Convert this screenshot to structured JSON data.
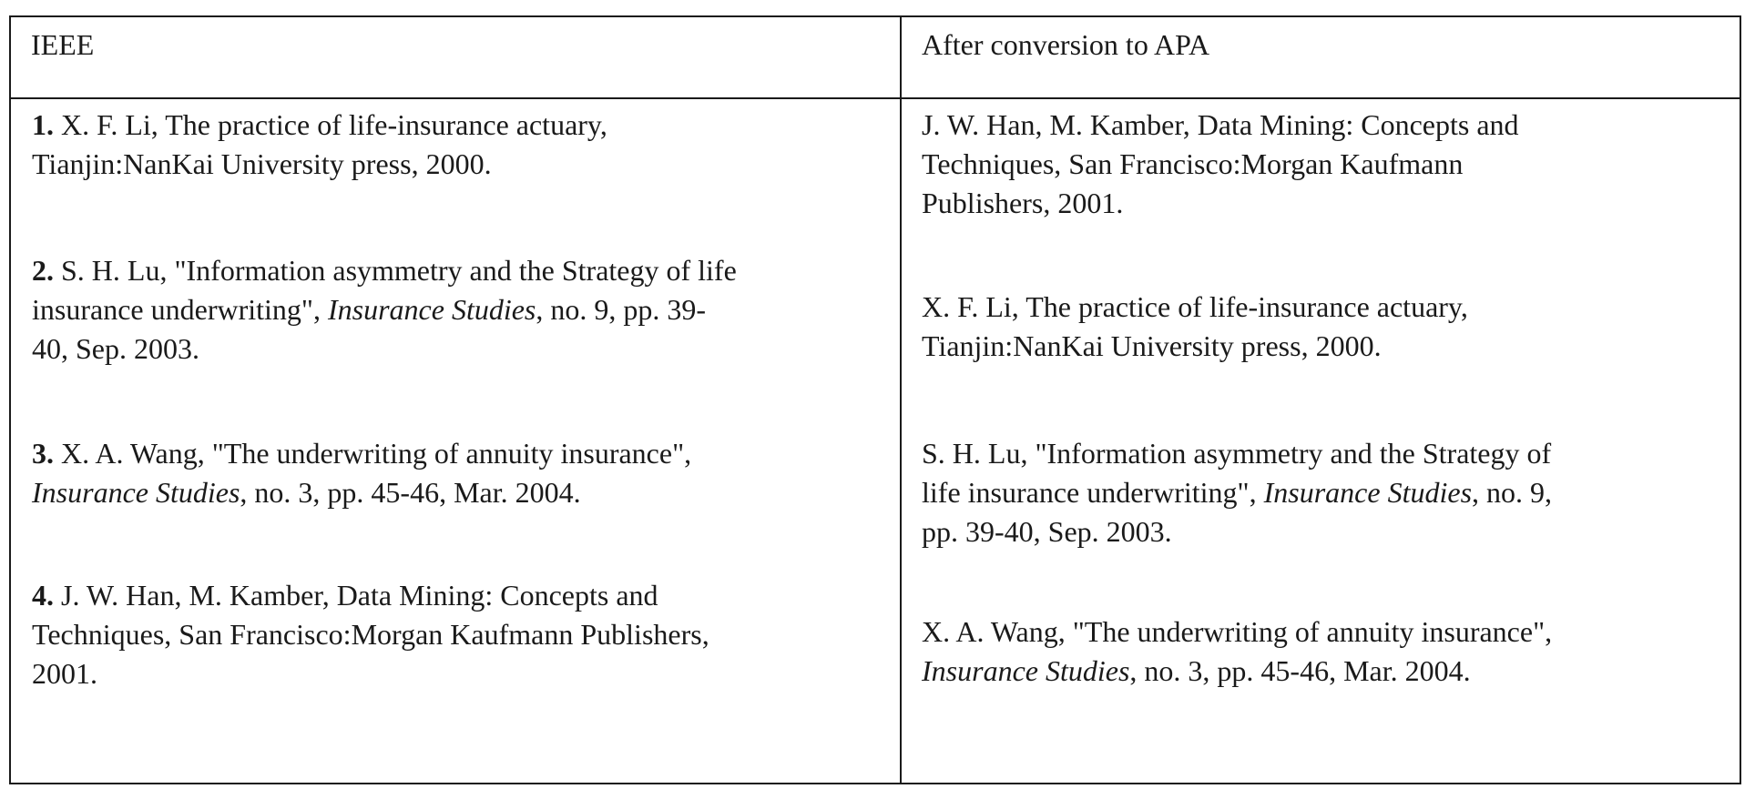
{
  "table": {
    "headers": {
      "left": "IEEE",
      "right": "After conversion to APA"
    },
    "ieee_entries": [
      {
        "number": "1.",
        "line1": " X. F. Li, The practice of life-insurance actuary,",
        "line2": "Tianjin:NanKai University press, 2000."
      },
      {
        "number": "2.",
        "line1": " S. H. Lu, \"Information asymmetry and the Strategy of life",
        "line2_pre": "insurance underwriting\", ",
        "journal": "Insurance Studies",
        "line2_post": ", no. 9, pp. 39-",
        "line3": "40, Sep. 2003."
      },
      {
        "number": "3.",
        "line1": " X. A. Wang, \"The underwriting of annuity insurance\",",
        "journal": "Insurance Studies",
        "line2_post": ", no. 3, pp. 45-46, Mar. 2004."
      },
      {
        "number": "4.",
        "line1": " J. W. Han, M. Kamber, Data Mining: Concepts and",
        "line2": "Techniques, San Francisco:Morgan Kaufmann Publishers,",
        "line3": "2001."
      }
    ],
    "apa_entries": [
      {
        "line1": "J. W. Han, M. Kamber, Data Mining: Concepts and",
        "line2": "Techniques, San Francisco:Morgan Kaufmann",
        "line3": "Publishers, 2001."
      },
      {
        "line1": "X. F. Li, The practice of life-insurance actuary,",
        "line2": "Tianjin:NanKai University press, 2000."
      },
      {
        "line1": "S. H. Lu, \"Information asymmetry and the Strategy of",
        "line2_pre": "life insurance underwriting\", ",
        "journal": "Insurance Studies",
        "line2_post": ", no. 9,",
        "line3": "pp. 39-40, Sep. 2003."
      },
      {
        "line1": "X. A. Wang, \"The underwriting of annuity insurance\",",
        "journal": "Insurance Studies",
        "line2_post": ", no. 3, pp. 45-46, Mar. 2004."
      }
    ]
  }
}
